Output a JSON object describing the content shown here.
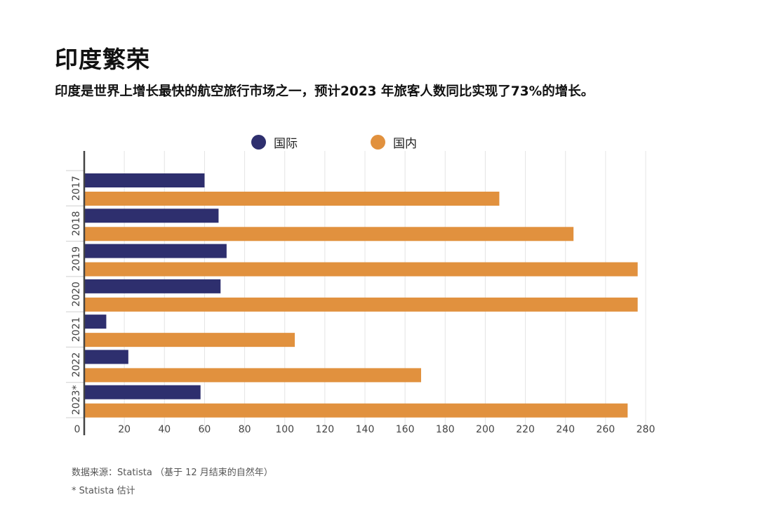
{
  "header": {
    "title": "印度繁荣",
    "subtitle": "印度是世界上增长最快的航空旅行市场之一，预计2023 年旅客人数同比实现了73%的增长。"
  },
  "legend": {
    "items": [
      {
        "label": "国际",
        "color": "#2e2f6e"
      },
      {
        "label": "国内",
        "color": "#e1913e"
      }
    ]
  },
  "chart_data": {
    "type": "bar",
    "orientation": "horizontal",
    "title": "印度繁荣",
    "subtitle": "印度是世界上增长最快的航空旅行市场之一，预计2023 年旅客人数同比实现了73%的增长。",
    "categories": [
      "2017",
      "2018",
      "2019",
      "2020",
      "2021",
      "2022",
      "2023*"
    ],
    "series": [
      {
        "name": "国际",
        "color": "#2e2f6e",
        "values": [
          60,
          67,
          71,
          68,
          11,
          22,
          58
        ]
      },
      {
        "name": "国内",
        "color": "#e1913e",
        "values": [
          207,
          244,
          276,
          276,
          105,
          168,
          271
        ]
      }
    ],
    "xlim": [
      0,
      280
    ],
    "xticks": [
      0,
      20,
      40,
      60,
      80,
      100,
      120,
      140,
      160,
      180,
      200,
      220,
      240,
      260,
      280
    ],
    "grid": true,
    "legend_position": "top-center"
  },
  "footer": {
    "source": "数据来源：Statista （基于 12 月结束的自然年）",
    "note": "* Statista 估计"
  }
}
